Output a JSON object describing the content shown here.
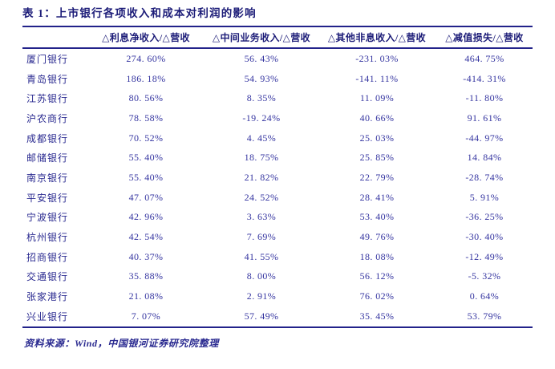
{
  "colors": {
    "rule_navy": "#22228a",
    "title_navy": "#1c1c78",
    "value_navy": "#3434a0",
    "background": "#ffffff"
  },
  "title": "表 1：上市银行各项收入和成本对利润的影响",
  "table": {
    "headers": [
      "",
      "△利息净收入/△营收",
      "△中间业务收入/△营收",
      "△其他非息收入/△营收",
      "△减值损失/△营收"
    ],
    "rows": [
      {
        "bank": "厦门银行",
        "values": [
          "274. 60%",
          "56. 43%",
          "-231. 03%",
          "464. 75%"
        ]
      },
      {
        "bank": "青岛银行",
        "values": [
          "186. 18%",
          "54. 93%",
          "-141. 11%",
          "-414. 31%"
        ]
      },
      {
        "bank": "江苏银行",
        "values": [
          "80. 56%",
          "8. 35%",
          "11. 09%",
          "-11. 80%"
        ]
      },
      {
        "bank": "沪农商行",
        "values": [
          "78. 58%",
          "-19. 24%",
          "40. 66%",
          "91. 61%"
        ]
      },
      {
        "bank": "成都银行",
        "values": [
          "70. 52%",
          "4. 45%",
          "25. 03%",
          "-44. 97%"
        ]
      },
      {
        "bank": "邮储银行",
        "values": [
          "55. 40%",
          "18. 75%",
          "25. 85%",
          "14. 84%"
        ]
      },
      {
        "bank": "南京银行",
        "values": [
          "55. 40%",
          "21. 82%",
          "22. 79%",
          "-28. 74%"
        ]
      },
      {
        "bank": "平安银行",
        "values": [
          "47. 07%",
          "24. 52%",
          "28. 41%",
          "5. 91%"
        ]
      },
      {
        "bank": "宁波银行",
        "values": [
          "42. 96%",
          "3. 63%",
          "53. 40%",
          "-36. 25%"
        ]
      },
      {
        "bank": "杭州银行",
        "values": [
          "42. 54%",
          "7. 69%",
          "49. 76%",
          "-30. 40%"
        ]
      },
      {
        "bank": "招商银行",
        "values": [
          "40. 37%",
          "41. 55%",
          "18. 08%",
          "-12. 49%"
        ]
      },
      {
        "bank": "交通银行",
        "values": [
          "35. 88%",
          "8. 00%",
          "56. 12%",
          "-5. 32%"
        ]
      },
      {
        "bank": "张家港行",
        "values": [
          "21. 08%",
          "2. 91%",
          "76. 02%",
          "0. 64%"
        ]
      },
      {
        "bank": "兴业银行",
        "values": [
          "7. 07%",
          "57. 49%",
          "35. 45%",
          "53. 79%"
        ]
      }
    ]
  },
  "footer": "资料来源：Wind，中国银河证券研究院整理"
}
